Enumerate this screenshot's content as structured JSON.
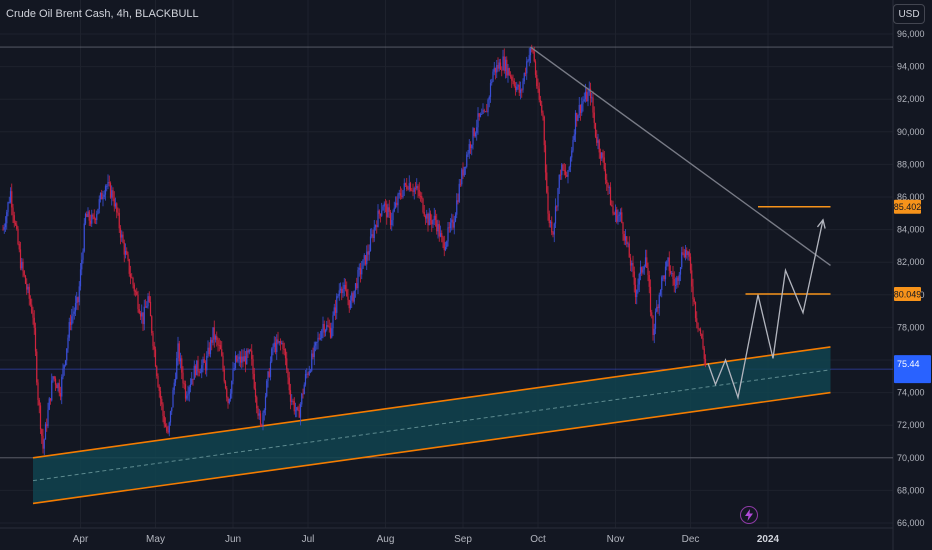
{
  "header": {
    "symbol": "Crude Oil Brent Cash",
    "interval": "4h",
    "broker": "BLACKBULL",
    "currency_button": "USD"
  },
  "icons": {
    "alert": "lightning-bolt-icon"
  },
  "colors": {
    "background": "#131722",
    "up_candle": "#3a4fd6",
    "down_candle": "#d0243e",
    "channel_line": "#f57c00",
    "channel_fill": "#11434f",
    "trend_line": "#787b86",
    "projection": "#b2b5be",
    "price_tag": "#2962ff",
    "target_tag": "#f7931a"
  },
  "chart_data": {
    "type": "candlestick",
    "ylim": [
      66000,
      96000
    ],
    "y_ticks": [
      "96,000",
      "94,000",
      "92,000",
      "90,000",
      "88,000",
      "86,000",
      "84,000",
      "82,000",
      "80,000",
      "78,000",
      "76,000",
      "74,000",
      "72,000",
      "70,000",
      "68,000",
      "66,000"
    ],
    "x_ticks": [
      "Apr",
      "May",
      "Jun",
      "Jul",
      "Aug",
      "Sep",
      "Oct",
      "Nov",
      "Dec",
      "2024"
    ],
    "price_path": [
      [
        "Mar 1",
        84000
      ],
      [
        "Mar 4",
        86300
      ],
      [
        "Mar 8",
        82000
      ],
      [
        "Mar 13",
        78800
      ],
      [
        "Mar 15",
        73800
      ],
      [
        "Mar 17",
        70600
      ],
      [
        "Mar 21",
        75000
      ],
      [
        "Mar 24",
        74200
      ],
      [
        "Mar 28",
        78500
      ],
      [
        "Mar 31",
        79600
      ],
      [
        "Apr 3",
        84800
      ],
      [
        "Apr 6",
        84500
      ],
      [
        "Apr 11",
        86800
      ],
      [
        "Apr 14",
        86100
      ],
      [
        "Apr 18",
        83100
      ],
      [
        "Apr 21",
        81200
      ],
      [
        "Apr 26",
        78500
      ],
      [
        "Apr 28",
        79800
      ],
      [
        "May 2",
        74700
      ],
      [
        "May 4",
        72600
      ],
      [
        "May 6",
        71300
      ],
      [
        "May 10",
        76600
      ],
      [
        "May 13",
        74000
      ],
      [
        "May 17",
        75500
      ],
      [
        "May 21",
        75700
      ],
      [
        "May 24",
        77600
      ],
      [
        "May 27",
        76500
      ],
      [
        "May 30",
        73500
      ],
      [
        "Jun 2",
        75900
      ],
      [
        "Jun 5",
        76000
      ],
      [
        "Jun 8",
        76300
      ],
      [
        "Jun 12",
        71800
      ],
      [
        "Jun 14",
        73900
      ],
      [
        "Jun 17",
        76800
      ],
      [
        "Jun 21",
        77000
      ],
      [
        "Jun 24",
        73800
      ],
      [
        "Jun 27",
        72500
      ],
      [
        "Jun 30",
        74900
      ],
      [
        "Jul 3",
        76200
      ],
      [
        "Jul 7",
        78200
      ],
      [
        "Jul 10",
        77800
      ],
      [
        "Jul 14",
        80700
      ],
      [
        "Jul 18",
        79400
      ],
      [
        "Jul 21",
        81100
      ],
      [
        "Jul 25",
        82600
      ],
      [
        "Jul 28",
        84400
      ],
      [
        "Jul 31",
        85600
      ],
      [
        "Aug 3",
        84600
      ],
      [
        "Aug 7",
        86200
      ],
      [
        "Aug 10",
        86900
      ],
      [
        "Aug 14",
        86300
      ],
      [
        "Aug 18",
        84600
      ],
      [
        "Aug 21",
        84600
      ],
      [
        "Aug 24",
        83000
      ],
      [
        "Aug 28",
        84400
      ],
      [
        "Aug 31",
        87000
      ],
      [
        "Sep 3",
        88900
      ],
      [
        "Sep 7",
        90700
      ],
      [
        "Sep 10",
        91000
      ],
      [
        "Sep 13",
        93700
      ],
      [
        "Sep 17",
        94300
      ],
      [
        "Sep 20",
        93500
      ],
      [
        "Sep 24",
        92300
      ],
      [
        "Sep 27",
        94700
      ],
      [
        "Sep 29",
        95000
      ],
      [
        "Oct 1",
        92200
      ],
      [
        "Oct 3",
        90900
      ],
      [
        "Oct 5",
        84800
      ],
      [
        "Oct 7",
        84000
      ],
      [
        "Oct 10",
        87700
      ],
      [
        "Oct 13",
        87200
      ],
      [
        "Oct 16",
        90900
      ],
      [
        "Oct 19",
        91900
      ],
      [
        "Oct 22",
        92400
      ],
      [
        "Oct 24",
        89900
      ],
      [
        "Oct 27",
        88200
      ],
      [
        "Oct 31",
        85000
      ],
      [
        "Nov 3",
        84800
      ],
      [
        "Nov 7",
        82000
      ],
      [
        "Nov 9",
        80200
      ],
      [
        "Nov 13",
        82400
      ],
      [
        "Nov 16",
        77700
      ],
      [
        "Nov 19",
        80600
      ],
      [
        "Nov 22",
        81900
      ],
      [
        "Nov 25",
        80500
      ],
      [
        "Nov 28",
        82800
      ],
      [
        "Nov 30",
        82500
      ],
      [
        "Dec 3",
        78900
      ],
      [
        "Dec 5",
        77600
      ],
      [
        "Dec 7",
        75800
      ]
    ],
    "channel": {
      "upper": [
        [
          "Mar 13",
          70000
        ],
        [
          "Jan 26",
          76800
        ]
      ],
      "lower": [
        [
          "Mar 13",
          67200
        ],
        [
          "Jan 26",
          74000
        ]
      ],
      "mid_dashed": [
        [
          "Mar 13",
          68600
        ],
        [
          "Jan 26",
          75400
        ]
      ]
    },
    "resistance_trendline": [
      [
        "Sep 28",
        95200
      ],
      [
        "Jan 26",
        81800
      ]
    ],
    "projection_path": [
      [
        "Dec 8",
        75800
      ],
      [
        "Dec 11",
        74500
      ],
      [
        "Dec 15",
        76000
      ],
      [
        "Dec 20",
        73700
      ],
      [
        "Dec 28",
        80000
      ],
      [
        "Jan 3",
        76100
      ],
      [
        "Jan 8",
        81500
      ],
      [
        "Jan 15",
        78900
      ],
      [
        "Jan 23",
        84600
      ]
    ],
    "horizontal_levels": [
      {
        "price": 95200,
        "color": "#787b86"
      },
      {
        "price": 75440,
        "color": "#3a4fd6"
      },
      {
        "price": 70000,
        "color": "#787b86"
      }
    ],
    "target_lines": [
      {
        "price": 85402,
        "label": "85.402",
        "from": "Dec 28",
        "to": "Jan 26"
      },
      {
        "price": 80049,
        "label": "80.049",
        "from": "Dec 23",
        "to": "Jan 26"
      }
    ],
    "last_price": {
      "price": 75440,
      "label": "75.44"
    }
  }
}
